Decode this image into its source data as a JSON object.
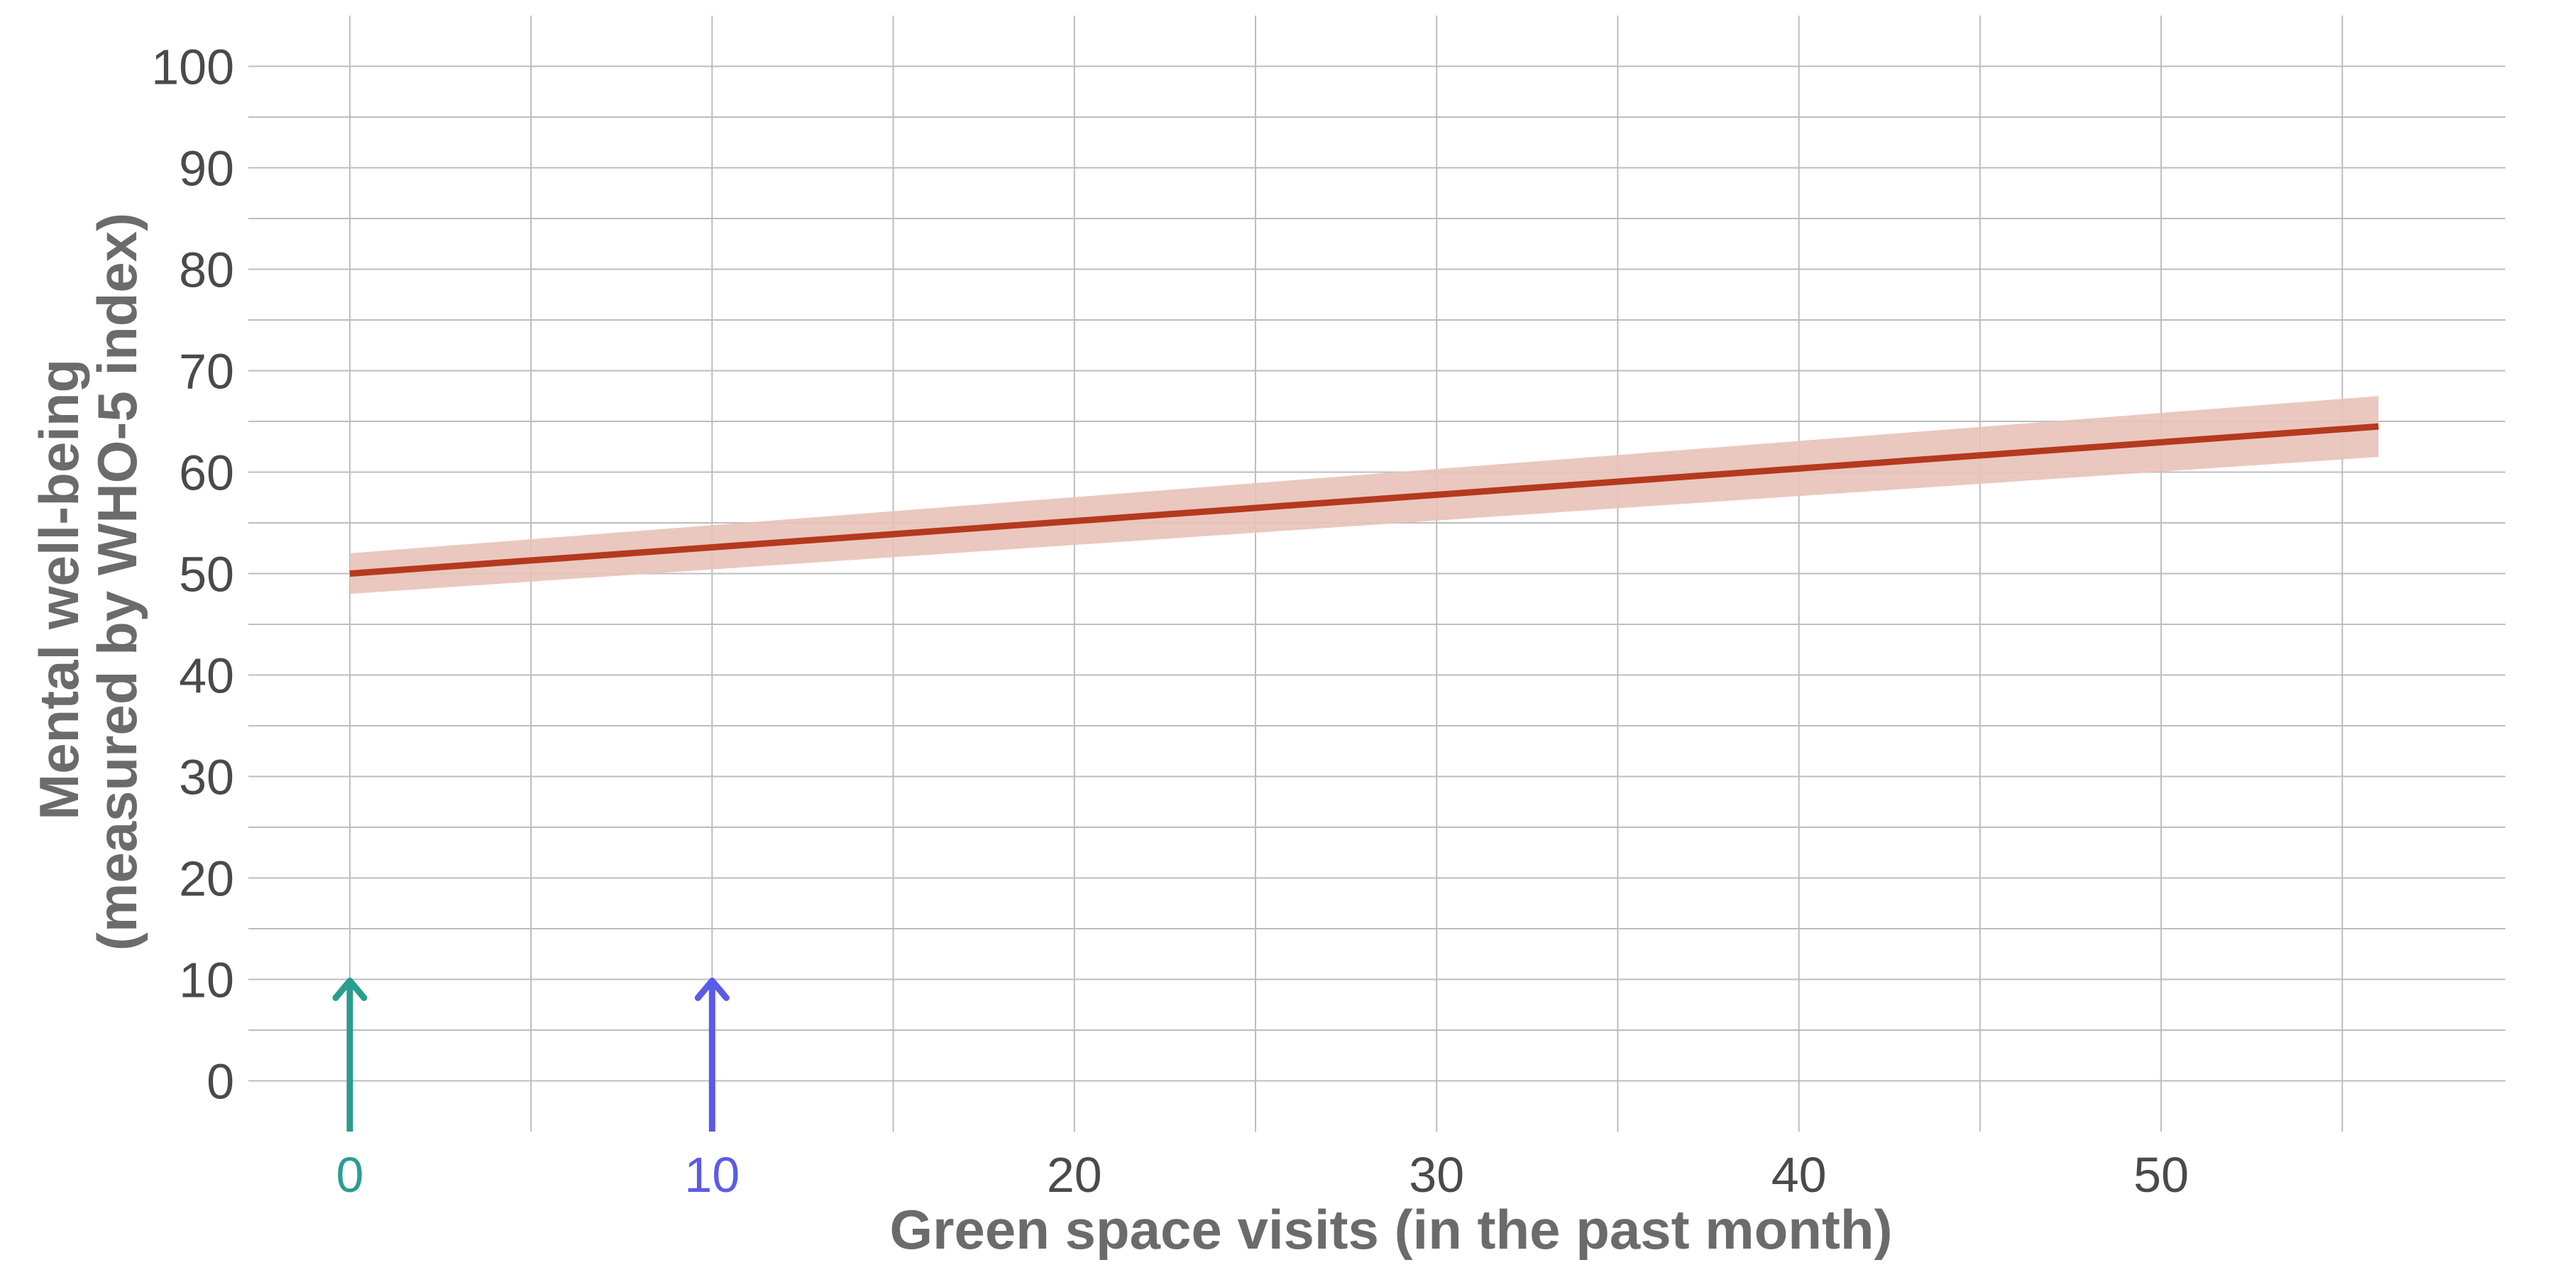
{
  "chart_data": {
    "type": "line",
    "title": "",
    "xlabel": "Green space visits (in the past month)",
    "ylabel_line1": "Mental well-being",
    "ylabel_line2": "(measured by WHO-5 index)",
    "xlim": [
      -2.8,
      59.5
    ],
    "ylim": [
      -5,
      105
    ],
    "x_ticks": [
      0,
      10,
      20,
      30,
      40,
      50
    ],
    "x_tick_labels": [
      "0",
      "10",
      "20",
      "30",
      "40",
      "50"
    ],
    "x_minor_ticks": [
      5,
      15,
      25,
      35,
      45,
      55
    ],
    "y_ticks": [
      0,
      10,
      20,
      30,
      40,
      50,
      60,
      70,
      80,
      90,
      100
    ],
    "y_tick_labels": [
      "0",
      "10",
      "20",
      "30",
      "40",
      "50",
      "60",
      "70",
      "80",
      "90",
      "100"
    ],
    "y_minor_ticks": [
      5,
      15,
      25,
      35,
      45,
      55,
      65,
      75,
      85,
      95
    ],
    "grid": true,
    "series": [
      {
        "x": [
          0,
          56
        ],
        "y": [
          50,
          64.5
        ],
        "ci_lower": [
          48,
          61.5
        ],
        "ci_upper": [
          52,
          67.5
        ],
        "color": "#b5391f",
        "band_color": "#e8c2b8"
      }
    ],
    "annotations": [
      {
        "type": "arrow",
        "x": 0,
        "y_from": -5,
        "y_to": 10,
        "color": "#2a9d8f",
        "tick_label_color": "#2a9d8f"
      },
      {
        "type": "arrow",
        "x": 10,
        "y_from": -5,
        "y_to": 10,
        "color": "#5b5be8",
        "tick_label_color": "#5b5be8"
      }
    ],
    "colors": {
      "grid": "#bdbdbd",
      "tick_text": "#4a4a4a",
      "axis_title": "#6b6b6b"
    }
  }
}
